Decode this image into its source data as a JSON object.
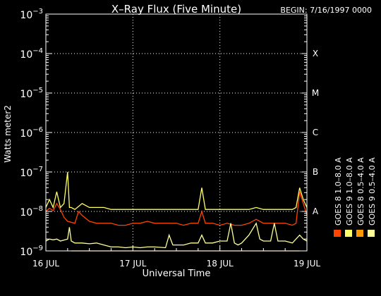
{
  "chart_data": {
    "type": "line",
    "title": "X–Ray Flux (Five Minute)",
    "begin": "BEGIN: 7/16/1997 0000",
    "xlabel": "Universal Time",
    "ylabel": "Watts meter2",
    "x_ticks": [
      "16 JUL",
      "17 JUL",
      "18 JUL",
      "19 JUL"
    ],
    "x_range_hours": [
      0,
      72
    ],
    "y_scale": "log",
    "y_ticks": [
      {
        "exp": -9,
        "label_base": "10",
        "label_exp": "−9"
      },
      {
        "exp": -8,
        "label_base": "10",
        "label_exp": "−8"
      },
      {
        "exp": -7,
        "label_base": "10",
        "label_exp": "−7"
      },
      {
        "exp": -6,
        "label_base": "10",
        "label_exp": "−6"
      },
      {
        "exp": -5,
        "label_base": "10",
        "label_exp": "−5"
      },
      {
        "exp": -4,
        "label_base": "10",
        "label_exp": "−4"
      },
      {
        "exp": -3,
        "label_base": "10",
        "label_exp": "−3"
      }
    ],
    "ylim_exp": [
      -9,
      -3
    ],
    "flare_classes": [
      {
        "label": "A",
        "exp": -8
      },
      {
        "label": "B",
        "exp": -7
      },
      {
        "label": "C",
        "exp": -6
      },
      {
        "label": "M",
        "exp": -5
      },
      {
        "label": "X",
        "exp": -4
      }
    ],
    "grid": "dotted",
    "legend_placement": "right",
    "series": [
      {
        "name": "GOES 8 1.0–8.0 A",
        "color": "#ff4400",
        "points": [
          [
            0,
            -8.0
          ],
          [
            1,
            -7.92
          ],
          [
            2,
            -7.98
          ],
          [
            3,
            -7.8
          ],
          [
            4,
            -7.95
          ],
          [
            5,
            -8.15
          ],
          [
            6,
            -8.25
          ],
          [
            8,
            -8.3
          ],
          [
            9,
            -8.0
          ],
          [
            10,
            -8.1
          ],
          [
            12,
            -8.25
          ],
          [
            14,
            -8.3
          ],
          [
            16,
            -8.3
          ],
          [
            18,
            -8.3
          ],
          [
            20,
            -8.35
          ],
          [
            22,
            -8.35
          ],
          [
            24,
            -8.3
          ],
          [
            26,
            -8.3
          ],
          [
            28,
            -8.25
          ],
          [
            30,
            -8.3
          ],
          [
            32,
            -8.3
          ],
          [
            34,
            -8.3
          ],
          [
            36,
            -8.3
          ],
          [
            38,
            -8.35
          ],
          [
            40,
            -8.3
          ],
          [
            42,
            -8.3
          ],
          [
            43,
            -8.0
          ],
          [
            44,
            -8.3
          ],
          [
            46,
            -8.3
          ],
          [
            48,
            -8.35
          ],
          [
            50,
            -8.3
          ],
          [
            52,
            -8.35
          ],
          [
            54,
            -8.35
          ],
          [
            56,
            -8.3
          ],
          [
            58,
            -8.2
          ],
          [
            60,
            -8.3
          ],
          [
            62,
            -8.3
          ],
          [
            64,
            -8.3
          ],
          [
            66,
            -8.3
          ],
          [
            68,
            -8.35
          ],
          [
            69,
            -8.3
          ],
          [
            70,
            -7.5
          ],
          [
            71,
            -7.8
          ],
          [
            72,
            -8.1
          ]
        ]
      },
      {
        "name": "GOES 8 0.5–4.0 A",
        "color": "#ff9900",
        "points": [
          [
            7,
            -9.0
          ],
          [
            34,
            -9.0
          ],
          [
            51,
            -9.0
          ],
          [
            63,
            -9.0
          ],
          [
            65,
            -9.0
          ],
          [
            70,
            -9.0
          ]
        ]
      },
      {
        "name": "GOES 9 1.0–8.0 A",
        "color": "#ffff66",
        "points": [
          [
            0,
            -7.9
          ],
          [
            1,
            -7.7
          ],
          [
            2,
            -7.9
          ],
          [
            3,
            -7.5
          ],
          [
            4,
            -7.9
          ],
          [
            5,
            -7.8
          ],
          [
            6,
            -7.0
          ],
          [
            6.5,
            -7.9
          ],
          [
            7,
            -7.9
          ],
          [
            8,
            -7.95
          ],
          [
            10,
            -7.8
          ],
          [
            11,
            -7.85
          ],
          [
            12,
            -7.9
          ],
          [
            14,
            -7.9
          ],
          [
            16,
            -7.9
          ],
          [
            18,
            -7.95
          ],
          [
            20,
            -7.95
          ],
          [
            22,
            -7.95
          ],
          [
            24,
            -7.95
          ],
          [
            26,
            -7.95
          ],
          [
            28,
            -7.95
          ],
          [
            30,
            -7.95
          ],
          [
            32,
            -7.95
          ],
          [
            34,
            -7.95
          ],
          [
            36,
            -7.95
          ],
          [
            38,
            -7.95
          ],
          [
            40,
            -7.95
          ],
          [
            42,
            -7.95
          ],
          [
            43,
            -7.4
          ],
          [
            44,
            -7.95
          ],
          [
            46,
            -7.95
          ],
          [
            48,
            -7.95
          ],
          [
            50,
            -7.95
          ],
          [
            52,
            -7.95
          ],
          [
            54,
            -7.95
          ],
          [
            56,
            -7.95
          ],
          [
            58,
            -7.9
          ],
          [
            60,
            -7.95
          ],
          [
            62,
            -7.95
          ],
          [
            64,
            -7.95
          ],
          [
            66,
            -7.95
          ],
          [
            68,
            -7.95
          ],
          [
            69,
            -7.9
          ],
          [
            70,
            -7.4
          ],
          [
            71,
            -7.7
          ],
          [
            72,
            -7.9
          ]
        ]
      },
      {
        "name": "GOES 9 0.5–4.0 A",
        "color": "#ffff99",
        "points": [
          [
            0,
            -8.75
          ],
          [
            1,
            -8.7
          ],
          [
            2,
            -8.72
          ],
          [
            3,
            -8.7
          ],
          [
            4,
            -8.75
          ],
          [
            6,
            -8.7
          ],
          [
            6.5,
            -8.4
          ],
          [
            7,
            -8.75
          ],
          [
            8,
            -8.8
          ],
          [
            10,
            -8.8
          ],
          [
            12,
            -8.82
          ],
          [
            14,
            -8.8
          ],
          [
            16,
            -8.85
          ],
          [
            18,
            -8.9
          ],
          [
            20,
            -8.9
          ],
          [
            22,
            -8.92
          ],
          [
            24,
            -8.9
          ],
          [
            26,
            -8.92
          ],
          [
            28,
            -8.9
          ],
          [
            30,
            -8.9
          ],
          [
            33,
            -8.92
          ],
          [
            34,
            -8.6
          ],
          [
            35,
            -8.85
          ],
          [
            38,
            -8.85
          ],
          [
            40,
            -8.8
          ],
          [
            42,
            -8.8
          ],
          [
            43,
            -8.6
          ],
          [
            44,
            -8.8
          ],
          [
            46,
            -8.8
          ],
          [
            48,
            -8.75
          ],
          [
            50,
            -8.75
          ],
          [
            51,
            -8.3
          ],
          [
            52,
            -8.8
          ],
          [
            53,
            -8.85
          ],
          [
            54,
            -8.8
          ],
          [
            56,
            -8.6
          ],
          [
            58,
            -8.3
          ],
          [
            59,
            -8.7
          ],
          [
            60,
            -8.75
          ],
          [
            62,
            -8.75
          ],
          [
            63,
            -8.3
          ],
          [
            64,
            -8.75
          ],
          [
            66,
            -8.75
          ],
          [
            68,
            -8.8
          ],
          [
            70,
            -8.6
          ],
          [
            71,
            -8.7
          ],
          [
            72,
            -8.75
          ]
        ]
      }
    ]
  }
}
